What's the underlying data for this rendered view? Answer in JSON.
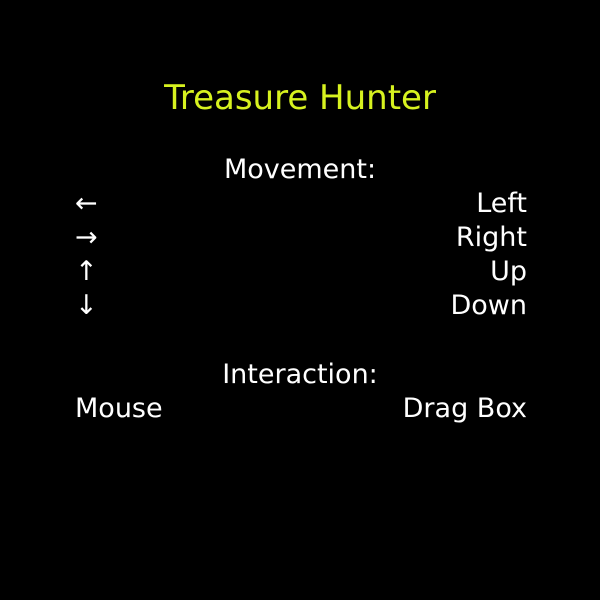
{
  "title": "Treasure Hunter",
  "colors": {
    "background": "#000000",
    "title": "#d7f21f",
    "text": "#ffffff"
  },
  "movement": {
    "heading": "Movement:",
    "controls": [
      {
        "key": "←",
        "action": "Left"
      },
      {
        "key": "→",
        "action": "Right"
      },
      {
        "key": "↑",
        "action": "Up"
      },
      {
        "key": "↓",
        "action": "Down"
      }
    ]
  },
  "interaction": {
    "heading": "Interaction:",
    "controls": [
      {
        "key": "Mouse",
        "action": "Drag Box"
      }
    ]
  }
}
